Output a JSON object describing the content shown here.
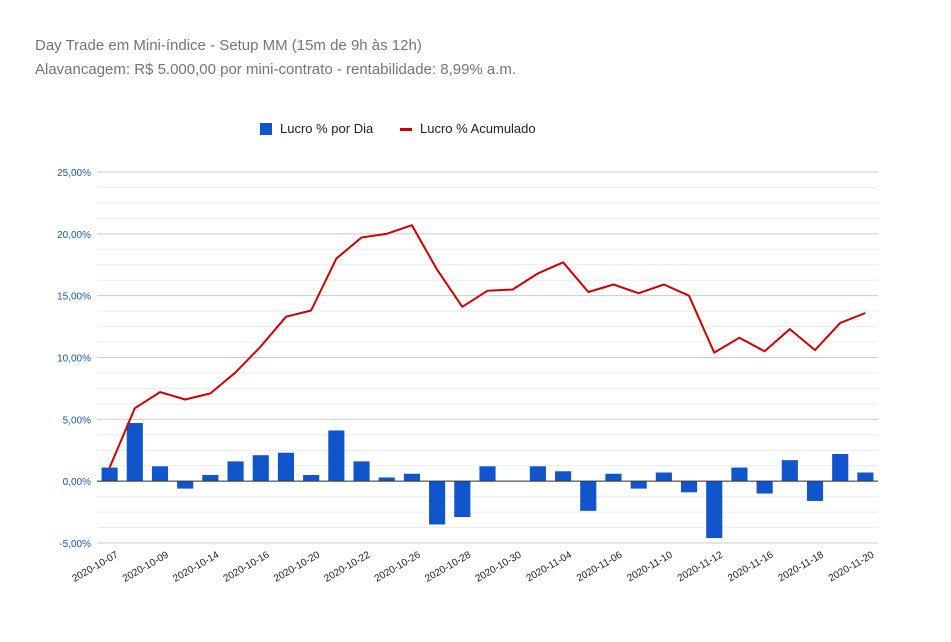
{
  "chart_data": {
    "type": "bar",
    "title": "Day Trade em Mini-índice - Setup MM (15m de 9h às 12h)",
    "subtitle": "Alavancagem: R$ 5.000,00 por mini-contrato - rentabilidade: 8,99% a.m.",
    "legend_position": "top",
    "grid": true,
    "ylim": [
      -5,
      25
    ],
    "y_ticks": [
      "-5,00%",
      "0,00%",
      "5,00%",
      "10,00%",
      "15,00%",
      "20,00%",
      "25,00%"
    ],
    "y_tick_values": [
      -5,
      0,
      5,
      10,
      15,
      20,
      25
    ],
    "x_tick_labels": [
      "2020-10-07",
      "2020-10-09",
      "2020-10-14",
      "2020-10-16",
      "2020-10-20",
      "2020-10-22",
      "2020-10-26",
      "2020-10-28",
      "2020-10-30",
      "2020-11-04",
      "2020-11-06",
      "2020-11-10",
      "2020-11-12",
      "2020-11-16",
      "2020-11-18",
      "2020-11-20"
    ],
    "series": [
      {
        "name": "Lucro % por Dia",
        "type": "bar",
        "color": "#1155cc",
        "values": [
          1.1,
          4.7,
          1.2,
          -0.6,
          0.5,
          1.6,
          2.1,
          2.3,
          0.5,
          4.1,
          1.6,
          0.3,
          0.6,
          -3.5,
          -2.9,
          1.2,
          0.0,
          1.2,
          0.8,
          -2.4,
          0.6,
          -0.6,
          0.7,
          -0.9,
          -4.6,
          1.1,
          -1.0,
          1.7,
          -1.6,
          2.2,
          0.7
        ]
      },
      {
        "name": "Lucro % Acumulado",
        "type": "line",
        "color": "#cc0000",
        "values": [
          1.1,
          5.9,
          7.2,
          6.6,
          7.1,
          8.8,
          10.9,
          13.3,
          13.8,
          18.0,
          19.7,
          20.0,
          20.7,
          17.1,
          14.1,
          15.4,
          15.5,
          16.8,
          17.7,
          15.3,
          15.9,
          15.2,
          15.9,
          15.0,
          10.4,
          11.6,
          10.5,
          12.3,
          10.6,
          12.8,
          13.6
        ]
      }
    ]
  }
}
